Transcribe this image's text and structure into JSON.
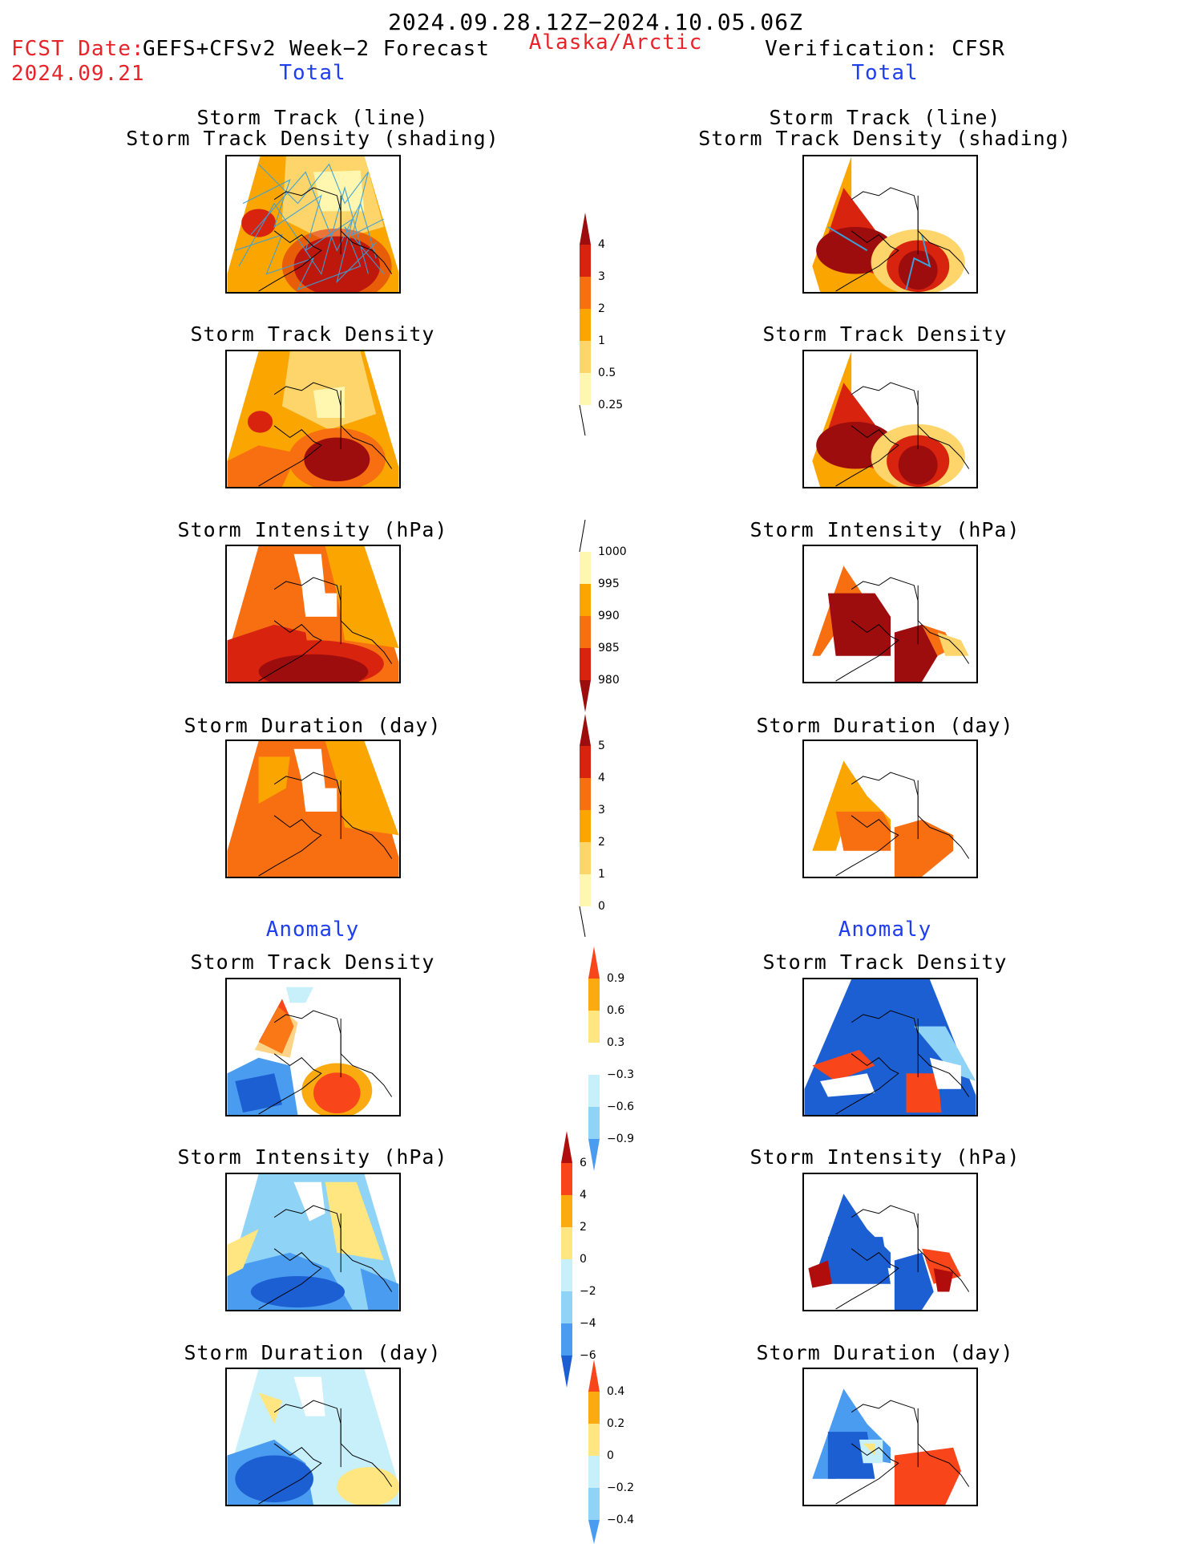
{
  "header": {
    "period": "2024.09.28.12Z−2024.10.05.06Z",
    "fcst_label": "FCST Date:",
    "fcst_model": "GEFS+CFSv2 Week−2 Forecast",
    "fcst_date": "2024.09.21",
    "region": "Alaska/Arctic",
    "verification": "Verification: CFSR",
    "left_total": "Total",
    "right_total": "Total",
    "left_anomaly": "Anomaly",
    "right_anomaly": "Anomaly"
  },
  "panels": {
    "track_line": "Storm Track (line)",
    "track_density_shading": "Storm Track Density (shading)",
    "track_density": "Storm Track Density",
    "intensity": "Storm Intensity (hPa)",
    "duration": "Storm Duration (day)"
  },
  "colorbars": {
    "density": [
      "0.25",
      "0.5",
      "1",
      "2",
      "3",
      "4"
    ],
    "intensity": [
      "1000",
      "995",
      "990",
      "985",
      "980"
    ],
    "duration": [
      "0",
      "1",
      "2",
      "3",
      "4",
      "5"
    ],
    "density_anom": [
      "0.9",
      "0.6",
      "0.3",
      "−0.3",
      "−0.6",
      "−0.9"
    ],
    "intensity_anom": [
      "6",
      "4",
      "2",
      "0",
      "−2",
      "−4",
      "−6"
    ],
    "duration_anom": [
      "0.4",
      "0.2",
      "0",
      "−0.2",
      "−0.4"
    ]
  },
  "colors": {
    "total_scale": [
      "#fff7b0",
      "#fdd56a",
      "#fba600",
      "#f86f12",
      "#d8230f",
      "#9e0d0d"
    ],
    "anom_warm": [
      "#ffe680",
      "#fbaa10",
      "#f8461a",
      "#b20d0d"
    ],
    "anom_cool": [
      "#c7f0fb",
      "#8fd3f7",
      "#4a9cf0",
      "#1c5fd3"
    ],
    "track_line": "#3aa0d8"
  }
}
